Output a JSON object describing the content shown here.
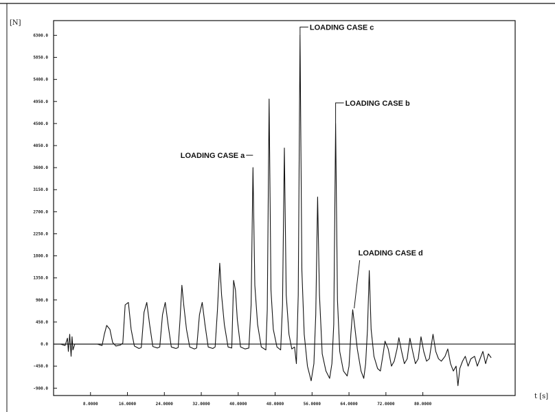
{
  "chart_data": {
    "type": "line",
    "title": "",
    "ylabel": "[N]",
    "xlabel": "t [s]",
    "ylim": [
      -1050,
      6600
    ],
    "xlim": [
      0,
      100
    ],
    "grid": false,
    "yticks": [
      {
        "value": 6300,
        "label": "6300.0"
      },
      {
        "value": 5850,
        "label": "5850.0"
      },
      {
        "value": 5400,
        "label": "5400.0"
      },
      {
        "value": 4950,
        "label": "4950.0"
      },
      {
        "value": 4500,
        "label": "4500.0"
      },
      {
        "value": 4050,
        "label": "4050.0"
      },
      {
        "value": 3600,
        "label": "3600.0"
      },
      {
        "value": 3150,
        "label": "3150.0"
      },
      {
        "value": 2700,
        "label": "2700.0"
      },
      {
        "value": 2250,
        "label": "2250.0"
      },
      {
        "value": 1800,
        "label": "1800.0"
      },
      {
        "value": 1350,
        "label": "1350.0"
      },
      {
        "value": 900,
        "label": "900.0"
      },
      {
        "value": 450,
        "label": "450.0"
      },
      {
        "value": 0,
        "label": "0.0"
      },
      {
        "value": -450,
        "label": "-450.0"
      },
      {
        "value": -900,
        "label": "-900.0"
      }
    ],
    "xticks": [
      {
        "value": 8,
        "label": "8.0000"
      },
      {
        "value": 16,
        "label": "16.0000"
      },
      {
        "value": 24,
        "label": "24.0000"
      },
      {
        "value": 32,
        "label": "32.0000"
      },
      {
        "value": 40,
        "label": "40.0000"
      },
      {
        "value": 48,
        "label": "48.0000"
      },
      {
        "value": 56,
        "label": "56.0000"
      },
      {
        "value": 64,
        "label": "64.0000"
      },
      {
        "value": 72,
        "label": "72.0000"
      },
      {
        "value": 80,
        "label": "80.0000"
      }
    ],
    "series": [
      {
        "values": [
          [
            0,
            0
          ],
          [
            1.5,
            0
          ],
          [
            2.5,
            -30
          ],
          [
            3.0,
            120
          ],
          [
            3.2,
            -150
          ],
          [
            3.5,
            200
          ],
          [
            3.8,
            -250
          ],
          [
            4.0,
            150
          ],
          [
            4.2,
            -120
          ],
          [
            4.6,
            0
          ],
          [
            9.5,
            0
          ],
          [
            10.5,
            -30
          ],
          [
            11,
            200
          ],
          [
            11.5,
            380
          ],
          [
            12.2,
            300
          ],
          [
            12.8,
            30
          ],
          [
            13.5,
            -40
          ],
          [
            14.5,
            -20
          ],
          [
            15,
            20
          ],
          [
            15.5,
            800
          ],
          [
            16.2,
            850
          ],
          [
            16.8,
            300
          ],
          [
            17.5,
            -40
          ],
          [
            18.5,
            -90
          ],
          [
            19,
            -70
          ],
          [
            19.6,
            650
          ],
          [
            20.2,
            850
          ],
          [
            20.8,
            400
          ],
          [
            21.5,
            -50
          ],
          [
            22.5,
            -80
          ],
          [
            23,
            -60
          ],
          [
            23.6,
            600
          ],
          [
            24.2,
            850
          ],
          [
            24.8,
            400
          ],
          [
            25.5,
            -60
          ],
          [
            26.5,
            -90
          ],
          [
            27,
            -70
          ],
          [
            27.4,
            500
          ],
          [
            27.8,
            1200
          ],
          [
            28.2,
            800
          ],
          [
            28.8,
            300
          ],
          [
            29.5,
            -60
          ],
          [
            30.5,
            -100
          ],
          [
            31,
            -80
          ],
          [
            31.6,
            600
          ],
          [
            32.2,
            850
          ],
          [
            32.8,
            400
          ],
          [
            33.5,
            -60
          ],
          [
            34.5,
            -90
          ],
          [
            35,
            -60
          ],
          [
            35.5,
            700
          ],
          [
            36.0,
            1650
          ],
          [
            36.4,
            1000
          ],
          [
            37,
            400
          ],
          [
            37.8,
            -60
          ],
          [
            38.6,
            -80
          ],
          [
            39.0,
            1300
          ],
          [
            39.4,
            1100
          ],
          [
            39.8,
            500
          ],
          [
            40.5,
            -60
          ],
          [
            41.5,
            -100
          ],
          [
            42.3,
            -80
          ],
          [
            42.8,
            800
          ],
          [
            43.2,
            3600
          ],
          [
            43.6,
            1200
          ],
          [
            44.2,
            400
          ],
          [
            45.0,
            -60
          ],
          [
            46.0,
            -120
          ],
          [
            46.3,
            700
          ],
          [
            46.7,
            5000
          ],
          [
            47.1,
            1100
          ],
          [
            47.6,
            300
          ],
          [
            48.4,
            -60
          ],
          [
            49.2,
            -120
          ],
          [
            49.6,
            800
          ],
          [
            50.0,
            4000
          ],
          [
            50.4,
            1000
          ],
          [
            51.0,
            200
          ],
          [
            51.6,
            -100
          ],
          [
            52.2,
            -60
          ],
          [
            52.6,
            -400
          ],
          [
            53.0,
            1000
          ],
          [
            53.4,
            6300
          ],
          [
            53.8,
            1500
          ],
          [
            54.3,
            200
          ],
          [
            55.0,
            -450
          ],
          [
            55.8,
            -750
          ],
          [
            56.4,
            -400
          ],
          [
            56.8,
            600
          ],
          [
            57.2,
            3000
          ],
          [
            57.6,
            1000
          ],
          [
            58.2,
            -200
          ],
          [
            59.0,
            -550
          ],
          [
            59.8,
            -700
          ],
          [
            60.3,
            -400
          ],
          [
            60.7,
            400
          ],
          [
            61.1,
            4500
          ],
          [
            61.5,
            900
          ],
          [
            62.0,
            -150
          ],
          [
            62.8,
            -550
          ],
          [
            63.6,
            -650
          ],
          [
            64.0,
            -450
          ],
          [
            64.4,
            200
          ],
          [
            64.8,
            700
          ],
          [
            65.2,
            400
          ],
          [
            65.8,
            -100
          ],
          [
            66.6,
            -550
          ],
          [
            67.2,
            -700
          ],
          [
            67.6,
            -400
          ],
          [
            68.0,
            300
          ],
          [
            68.4,
            1500
          ],
          [
            68.8,
            300
          ],
          [
            69.4,
            -250
          ],
          [
            70.2,
            -500
          ],
          [
            70.8,
            -550
          ],
          [
            71.4,
            -200
          ],
          [
            71.8,
            60
          ],
          [
            72.5,
            -100
          ],
          [
            73.2,
            -450
          ],
          [
            73.8,
            -350
          ],
          [
            74.4,
            -100
          ],
          [
            74.8,
            130
          ],
          [
            75.4,
            -150
          ],
          [
            76.0,
            -400
          ],
          [
            76.6,
            -300
          ],
          [
            77.2,
            120
          ],
          [
            77.8,
            -150
          ],
          [
            78.4,
            -400
          ],
          [
            79.0,
            -300
          ],
          [
            79.6,
            150
          ],
          [
            80.2,
            -150
          ],
          [
            80.8,
            -350
          ],
          [
            81.4,
            -300
          ],
          [
            82.2,
            200
          ],
          [
            82.8,
            -150
          ],
          [
            83.4,
            -300
          ],
          [
            84.0,
            -350
          ],
          [
            84.8,
            -250
          ],
          [
            85.4,
            -100
          ],
          [
            86.0,
            -400
          ],
          [
            86.6,
            -550
          ],
          [
            87.2,
            -450
          ],
          [
            87.6,
            -850
          ],
          [
            88.0,
            -500
          ],
          [
            88.6,
            -350
          ],
          [
            89.2,
            -250
          ],
          [
            89.8,
            -450
          ],
          [
            90.4,
            -300
          ],
          [
            91.2,
            -250
          ],
          [
            91.8,
            -450
          ],
          [
            92.4,
            -300
          ],
          [
            93.0,
            -150
          ],
          [
            93.6,
            -400
          ],
          [
            94.2,
            -200
          ],
          [
            94.8,
            -280
          ]
        ]
      }
    ],
    "annotations": [
      {
        "label": "LOADING CASE a",
        "x": 43.2,
        "y": 3600
      },
      {
        "label": "LOADING CASE b",
        "x": 61.1,
        "y": 4500
      },
      {
        "label": "LOADING CASE c",
        "x": 53.4,
        "y": 6300
      },
      {
        "label": "LOADING CASE d",
        "x": 68.4,
        "y": 1500
      }
    ]
  }
}
